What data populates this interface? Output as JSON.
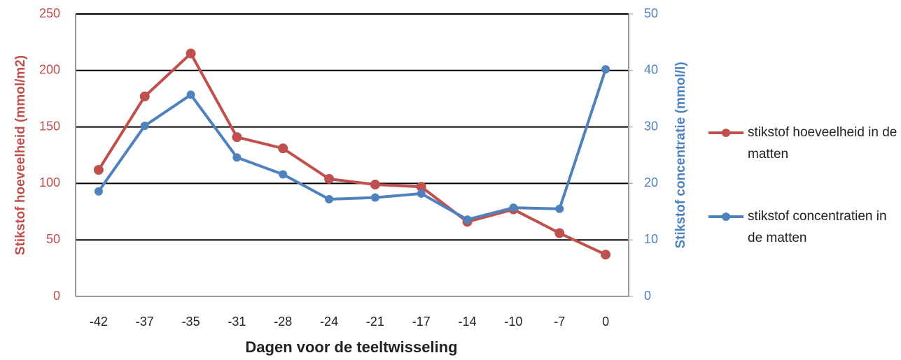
{
  "chart_data": {
    "type": "line",
    "x_label": "Dagen voor de teeltwisseling",
    "y_label": "Stikstof hoeveelheid (mmol/m2)",
    "y2_label": "Stikstof concentratie (mmol/l)",
    "categories": [
      "-42",
      "-37",
      "-35",
      "-31",
      "-28",
      "-24",
      "-21",
      "-17",
      "-14",
      "-10",
      "-7",
      "0"
    ],
    "series": [
      {
        "name": "stikstof hoeveelheid in de matten",
        "color": "#c0504d",
        "values": [
          112,
          177,
          215,
          141,
          131,
          104,
          99,
          97,
          66,
          77,
          56,
          37
        ]
      },
      {
        "name": "stikstof concentratien in de matten",
        "color": "#4f81bd",
        "axis": "y2",
        "values": [
          18.6,
          30.2,
          35.7,
          24.6,
          21.6,
          17.2,
          17.5,
          18.2,
          13.6,
          15.7,
          15.5,
          40.2
        ]
      }
    ],
    "ylim": [
      0,
      250
    ],
    "yticks": [
      0,
      50,
      100,
      150,
      200,
      250
    ],
    "y2lim": [
      0,
      50
    ],
    "y2ticks": [
      0,
      10,
      20,
      30,
      40,
      50
    ],
    "grid": true,
    "legend": "right"
  }
}
